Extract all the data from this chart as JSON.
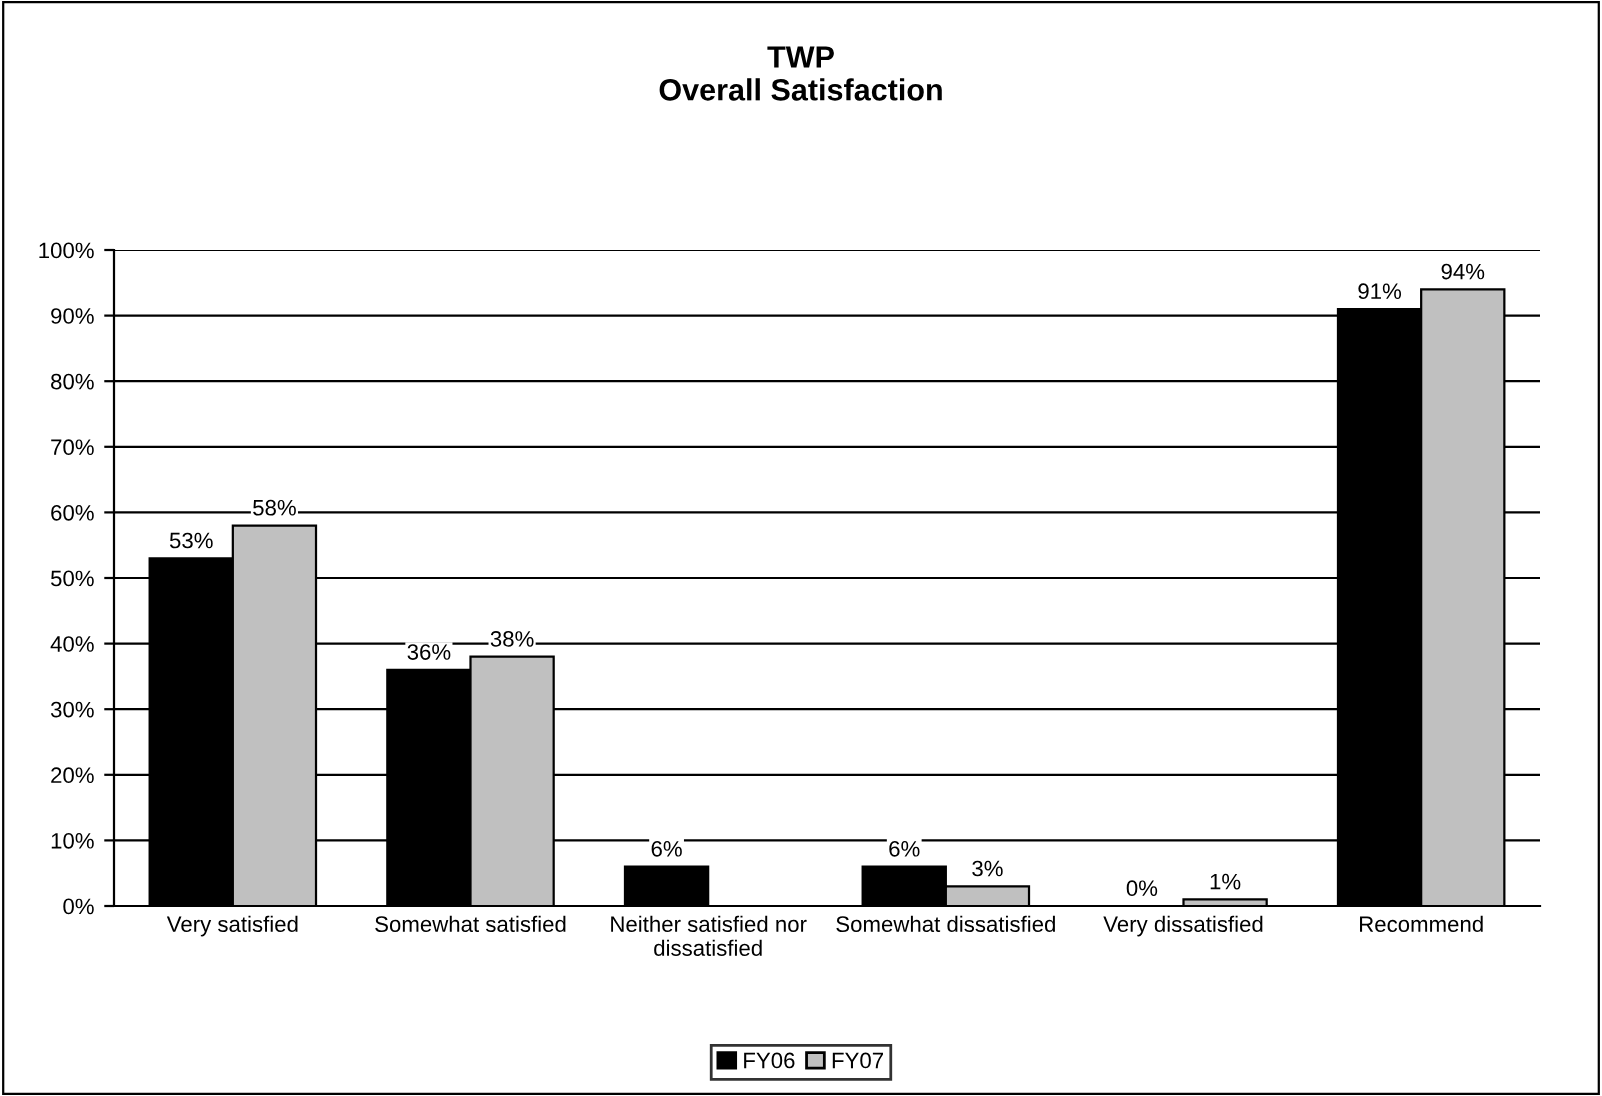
{
  "chart_data": {
    "type": "bar",
    "title": "TWP\nOverall Satisfaction",
    "categories": [
      "Very satisfied",
      "Somewhat satisfied",
      "Neither satisfied nor\ndissatisfied",
      "Somewhat dissatisfied",
      "Very dissatisfied",
      "Recommend"
    ],
    "series": [
      {
        "name": "FY06",
        "color": "#000000",
        "values": [
          53,
          36,
          6,
          6,
          0,
          91
        ],
        "value_labels": [
          "53%",
          "36%",
          "6%",
          "6%",
          "0%",
          "91%"
        ]
      },
      {
        "name": "FY07",
        "color": "#c0c0c0",
        "values": [
          58,
          38,
          null,
          3,
          1,
          94
        ],
        "value_labels": [
          "58%",
          "38%",
          null,
          "3%",
          "1%",
          "94%"
        ]
      }
    ],
    "ylim": [
      0,
      100
    ],
    "yticks": [
      {
        "value": 0,
        "label": "0%"
      },
      {
        "value": 10,
        "label": "10%"
      },
      {
        "value": 20,
        "label": "20%"
      },
      {
        "value": 30,
        "label": "30%"
      },
      {
        "value": 40,
        "label": "40%"
      },
      {
        "value": 50,
        "label": "50%"
      },
      {
        "value": 60,
        "label": "60%"
      },
      {
        "value": 70,
        "label": "70%"
      },
      {
        "value": 80,
        "label": "80%"
      },
      {
        "value": 90,
        "label": "90%"
      },
      {
        "value": 100,
        "label": "100%"
      }
    ],
    "grid": "y",
    "legend": "bottom"
  }
}
